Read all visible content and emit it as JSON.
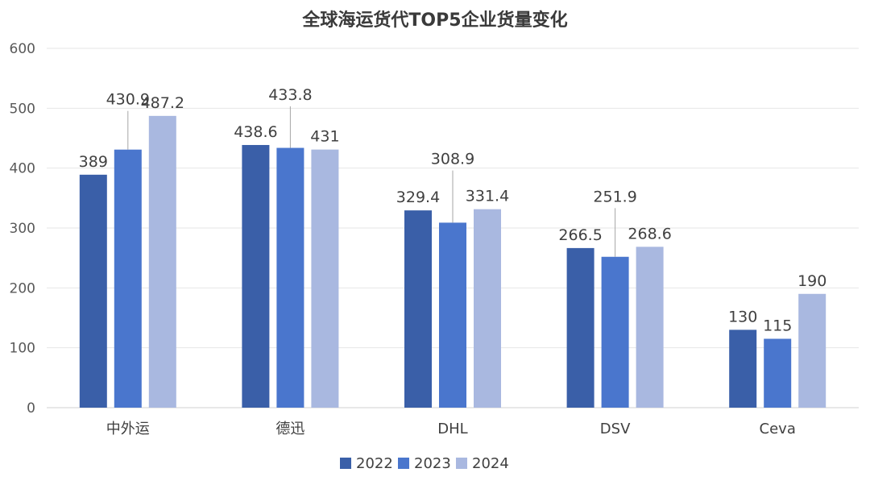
{
  "chart_data": {
    "type": "bar",
    "title": "全球海运货代TOP5企业货量变化",
    "xlabel": "",
    "ylabel": "",
    "ylim": [
      0,
      600
    ],
    "yticks": [
      0,
      100,
      200,
      300,
      400,
      500,
      600
    ],
    "grid": true,
    "legend_position": "bottom",
    "categories": [
      "中外运",
      "德迅",
      "DHL",
      "DSV",
      "Ceva"
    ],
    "series": [
      {
        "name": "2022",
        "color": "#3A5FA8",
        "values": [
          389,
          438.6,
          329.4,
          266.5,
          130
        ]
      },
      {
        "name": "2023",
        "color": "#4A76CD",
        "values": [
          430.9,
          433.8,
          308.9,
          251.9,
          115
        ]
      },
      {
        "name": "2024",
        "color": "#A9B8E0",
        "values": [
          487.2,
          431,
          331.4,
          268.6,
          190
        ]
      }
    ]
  }
}
